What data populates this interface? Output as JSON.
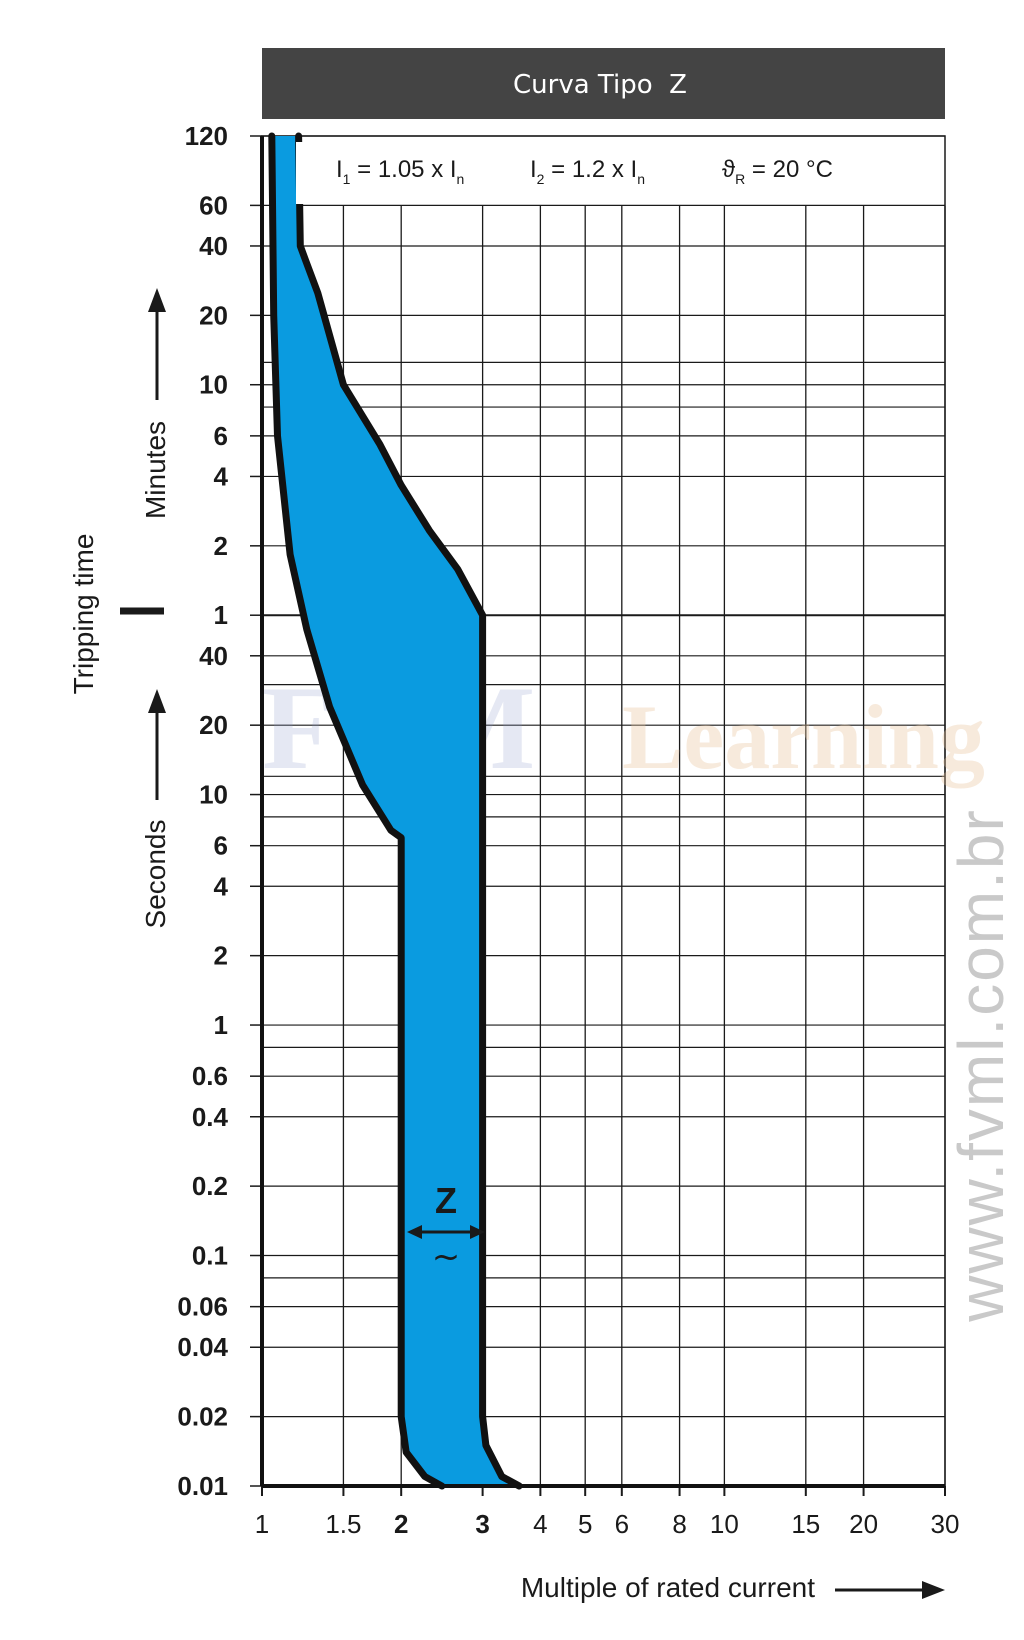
{
  "chart_data": {
    "type": "area",
    "title": "Curva Tipo  Z",
    "xlabel": "Multiple of rated current",
    "ylabel": "Tripping time",
    "x_scale": "log",
    "y_scale": "log",
    "xlim": [
      1,
      30
    ],
    "ylim_seconds": [
      0.01,
      7200
    ],
    "x_ticks": [
      {
        "value": 1,
        "label": "1",
        "bold": false
      },
      {
        "value": 1.5,
        "label": "1.5",
        "bold": false
      },
      {
        "value": 2,
        "label": "2",
        "bold": true
      },
      {
        "value": 3,
        "label": "3",
        "bold": true
      },
      {
        "value": 4,
        "label": "4",
        "bold": false
      },
      {
        "value": 5,
        "label": "5",
        "bold": false
      },
      {
        "value": 6,
        "label": "6",
        "bold": false
      },
      {
        "value": 8,
        "label": "8",
        "bold": false
      },
      {
        "value": 10,
        "label": "10",
        "bold": false
      },
      {
        "value": 15,
        "label": "15",
        "bold": false
      },
      {
        "value": 20,
        "label": "20",
        "bold": false
      },
      {
        "value": 30,
        "label": "30",
        "bold": false
      }
    ],
    "y_ticks_minutes": [
      {
        "value": 120,
        "label": "120"
      },
      {
        "value": 60,
        "label": "60"
      },
      {
        "value": 40,
        "label": "40"
      },
      {
        "value": 20,
        "label": "20"
      },
      {
        "value": 10,
        "label": "10"
      },
      {
        "value": 6,
        "label": "6"
      },
      {
        "value": 4,
        "label": "4"
      },
      {
        "value": 2,
        "label": "2"
      },
      {
        "value": 1,
        "label": "1"
      }
    ],
    "y_ticks_seconds": [
      {
        "value": 40,
        "label": "40"
      },
      {
        "value": 20,
        "label": "20"
      },
      {
        "value": 10,
        "label": "10"
      },
      {
        "value": 6,
        "label": "6"
      },
      {
        "value": 4,
        "label": "4"
      },
      {
        "value": 2,
        "label": "2"
      },
      {
        "value": 1,
        "label": "1"
      },
      {
        "value": 0.6,
        "label": "0.6"
      },
      {
        "value": 0.4,
        "label": "0.4"
      },
      {
        "value": 0.2,
        "label": "0.2"
      },
      {
        "value": 0.1,
        "label": "0.1"
      },
      {
        "value": 0.06,
        "label": "0.06"
      },
      {
        "value": 0.04,
        "label": "0.04"
      },
      {
        "value": 0.02,
        "label": "0.02"
      },
      {
        "value": 0.01,
        "label": "0.01"
      }
    ],
    "unit_minutes": "Minutes",
    "unit_seconds": "Seconds",
    "band_fill": "#0a9be0",
    "series": [
      {
        "points": [
          {
            "x": 1.05,
            "t": 7200
          },
          {
            "x": 1.06,
            "t": 1200
          },
          {
            "x": 1.08,
            "t": 360
          },
          {
            "x": 1.15,
            "t": 110
          },
          {
            "x": 1.25,
            "t": 52
          },
          {
            "x": 1.4,
            "t": 24
          },
          {
            "x": 1.65,
            "t": 11
          },
          {
            "x": 1.9,
            "t": 7
          },
          {
            "x": 2,
            "t": 6.5
          },
          {
            "x": 2,
            "t": 0.02
          },
          {
            "x": 2.05,
            "t": 0.014
          },
          {
            "x": 2.25,
            "t": 0.011
          },
          {
            "x": 2.45,
            "t": 0.01
          }
        ]
      },
      {
        "points": [
          {
            "x": 1.2,
            "t": 7200
          },
          {
            "x": 1.21,
            "t": 2400
          },
          {
            "x": 1.24,
            "t": 2100
          },
          {
            "x": 1.32,
            "t": 1500
          },
          {
            "x": 1.5,
            "t": 600
          },
          {
            "x": 1.8,
            "t": 330
          },
          {
            "x": 2,
            "t": 220
          },
          {
            "x": 2.3,
            "t": 140
          },
          {
            "x": 2.65,
            "t": 95
          },
          {
            "x": 3,
            "t": 60
          },
          {
            "x": 3,
            "t": 0.02
          },
          {
            "x": 3.05,
            "t": 0.015
          },
          {
            "x": 3.3,
            "t": 0.011
          },
          {
            "x": 3.6,
            "t": 0.01
          }
        ]
      }
    ],
    "parameters": {
      "i1_main": "I",
      "i1_sub": "1",
      "i1_eq": " = 1.05 x I",
      "i1_n": "n",
      "i2_main": "I",
      "i2_sub": "2",
      "i2_eq": " = 1.2 x I",
      "i2_n": "n",
      "theta_main": "ϑ",
      "theta_sub": "R",
      "theta_eq": " = 20 °C"
    },
    "band_label": "Z",
    "band_label_symbol": "~",
    "legend": "none",
    "grid": true
  },
  "watermarks": {
    "center_main": "FVM",
    "center_secondary": "Learning",
    "side_url": "www.fvml.com.br"
  },
  "colors": {
    "title_bar": "#444444",
    "band": "#0a9be0",
    "grid": "#1a1a1a",
    "watermark_blue": "#8a94c8",
    "watermark_orange": "#e8c49a"
  }
}
